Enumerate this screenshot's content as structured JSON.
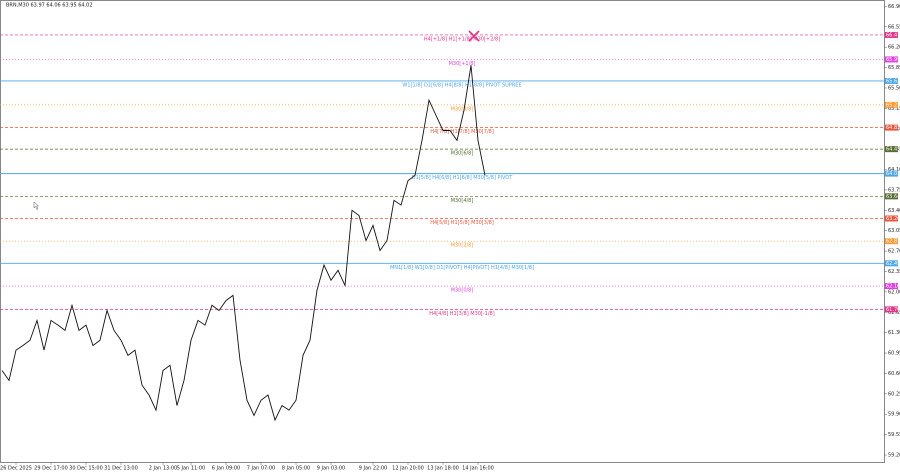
{
  "chart_data": {
    "type": "line",
    "title": "BRN,M30 63.97 64.06 63.95 64.02",
    "categories": [
      null,
      null,
      "26 Dec 2025",
      null,
      null,
      null,
      null,
      "29 Dec 17:00",
      null,
      null,
      null,
      null,
      "30 Dec 15:00",
      null,
      null,
      null,
      null,
      "31 Dec 13:00",
      null,
      null,
      null,
      null,
      null,
      "2 Jan 13:00",
      null,
      null,
      null,
      "5 Jan 11:00",
      null,
      null,
      null,
      null,
      "6 Jan 09:00",
      null,
      null,
      null,
      null,
      "7 Jan 07:00",
      null,
      null,
      null,
      null,
      "8 Jan 05:00",
      null,
      null,
      null,
      null,
      "9 Jan 03:00",
      null,
      null,
      null,
      null,
      null,
      "9 Jan 22:00",
      null,
      null,
      null,
      null,
      "12 Jan 20:00",
      null,
      null,
      null,
      null,
      "13 Jan 18:00",
      null,
      null,
      null,
      null,
      "14 Jan 16:00",
      null
    ],
    "series": [
      {
        "name": "BRN,M30",
        "color": "#111111",
        "values": [
          60.65,
          60.48,
          61.0,
          61.08,
          61.17,
          61.51,
          61.0,
          61.51,
          61.43,
          61.34,
          61.77,
          61.34,
          61.43,
          61.08,
          61.17,
          61.68,
          61.34,
          61.17,
          60.91,
          61.0,
          60.4,
          60.23,
          59.97,
          60.65,
          60.74,
          60.05,
          60.48,
          61.17,
          61.51,
          61.43,
          61.77,
          61.68,
          61.85,
          61.94,
          60.83,
          60.14,
          59.88,
          60.14,
          60.23,
          59.8,
          60.05,
          59.97,
          60.14,
          60.91,
          61.17,
          62.03,
          62.46,
          62.2,
          62.37,
          62.11,
          63.4,
          63.31,
          62.88,
          63.14,
          62.71,
          62.88,
          63.57,
          63.49,
          63.91,
          64.0,
          64.6,
          65.29,
          65.03,
          64.77,
          64.77,
          64.6,
          65.12,
          65.89,
          64.6,
          64.0
        ]
      }
    ],
    "ylim": [
      59.08,
      67.01
    ],
    "yticks": [
      {
        "value": 66.9,
        "label": "66.90"
      },
      66.55,
      {
        "value": 66.2,
        "label": "66.20"
      },
      65.85,
      {
        "value": 65.5,
        "label": "65.50"
      },
      65.15,
      {
        "value": 64.8,
        "label": "64.80"
      },
      64.45,
      {
        "value": 64.1,
        "label": "64.10"
      },
      63.75,
      {
        "value": 63.4,
        "label": "63.40"
      },
      63.05,
      {
        "value": 62.7,
        "label": "62.70"
      },
      62.35,
      {
        "value": 62.0,
        "label": "62.00"
      },
      61.65,
      {
        "value": 61.3,
        "label": "61.30"
      },
      60.95,
      {
        "value": 60.6,
        "label": "60.60"
      },
      60.25,
      {
        "value": 59.9,
        "label": "59.90"
      },
      59.55,
      {
        "value": 59.2,
        "label": "59.20"
      }
    ],
    "levels": [
      {
        "name": "H4[+1/8] H1[+1/8] M30[+2/8]",
        "value": 66.41,
        "color": "#e0338a",
        "dash": "3,2"
      },
      {
        "name": "M30[+1/8]",
        "value": 65.99,
        "color": "#e040e0",
        "dash": "1,2"
      },
      {
        "name": "W1[1/8] D1[6/8] H4[8/8] H1[8/8] PIVOT SUPREE",
        "value": 65.62,
        "color": "#4da6e8",
        "dash": "none"
      },
      {
        "name": "M30[8/8]",
        "value": 65.21,
        "color": "#ff9933",
        "dash": "1,2"
      },
      {
        "name": "H4[7/8] H1[7/8] M30[7/8]",
        "value": 64.82,
        "color": "#e8553a",
        "dash": "3,2"
      },
      {
        "name": "M30[6/8]",
        "value": 64.45,
        "color": "#556b2f",
        "dash": "3,2"
      },
      {
        "name": "D1[5/8] H4[6/8] H1[6/8] M30[5/8] PIVOT",
        "value": 64.03,
        "color": "#4da6e8",
        "dash": "none"
      },
      {
        "name": "M30[4/8]",
        "value": 63.64,
        "color": "#556b2f",
        "dash": "3,2"
      },
      {
        "name": "H4[5/8] H1[5/8] M30[3/8]",
        "value": 63.26,
        "color": "#e8553a",
        "dash": "3,2"
      },
      {
        "name": "M30[2/8]",
        "value": 62.87,
        "color": "#ff9933",
        "dash": "1,2"
      },
      {
        "name": "MN1[1/8] W1[0/8] D1[PIVOT] H4[PIVOT] H1[4/8] M30[1/8]",
        "value": 62.49,
        "color": "#4da6e8",
        "dash": "none"
      },
      {
        "name": "M30[0/8]",
        "value": 62.1,
        "price_label": "62.10",
        "color": "#e040e0",
        "dash": "1,2"
      },
      {
        "name": "H4[4/8] H1[3/8] M30[-1/8]",
        "value": 61.7,
        "price_label": "61.70",
        "color": "#e0338a",
        "dash": "3,2"
      }
    ]
  }
}
